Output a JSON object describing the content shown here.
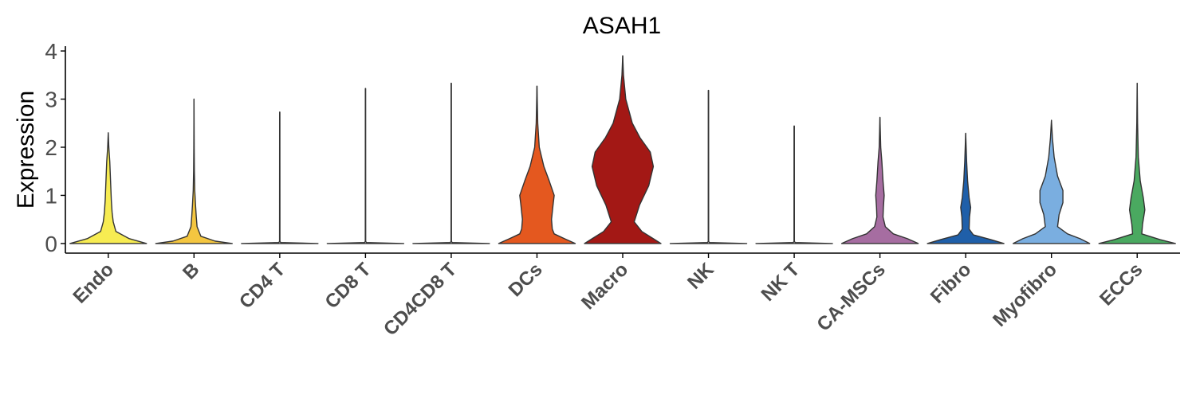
{
  "chart_data": {
    "type": "violin",
    "title": "ASAH1",
    "ylabel": "Expression",
    "xlabel": "",
    "ylim": [
      -0.2,
      4.1
    ],
    "yticks": [
      0,
      1,
      2,
      3,
      4
    ],
    "grid": false,
    "legend": "none",
    "categories": [
      "Endo",
      "B",
      "CD4 T",
      "CD8 T",
      "CD4CD8 T",
      "DCs",
      "Macro",
      "NK",
      "NK T",
      "CA-MSCs",
      "Fibro",
      "Myofibro",
      "ECCs"
    ],
    "colors": [
      "#f7ec52",
      "#f4c640",
      "#eeeeee",
      "#eeeeee",
      "#eeeeee",
      "#e4581f",
      "#a31815",
      "#eeeeee",
      "#eeeeee",
      "#a66da1",
      "#1f5fa9",
      "#7aaee0",
      "#4aa960"
    ],
    "max_values": [
      2.3,
      3.0,
      2.73,
      3.22,
      3.33,
      3.27,
      3.9,
      3.18,
      2.44,
      2.62,
      2.29,
      2.56,
      3.33
    ],
    "density_profiles": [
      [
        [
          0,
          1.0
        ],
        [
          0.1,
          0.55
        ],
        [
          0.25,
          0.2
        ],
        [
          0.45,
          0.13
        ],
        [
          0.65,
          0.1
        ],
        [
          0.9,
          0.08
        ],
        [
          1.3,
          0.06
        ],
        [
          1.7,
          0.04
        ],
        [
          2.0,
          0.015
        ],
        [
          2.3,
          0
        ]
      ],
      [
        [
          0,
          1.0
        ],
        [
          0.05,
          0.55
        ],
        [
          0.15,
          0.18
        ],
        [
          0.35,
          0.08
        ],
        [
          0.55,
          0.06
        ],
        [
          0.8,
          0.04
        ],
        [
          1.1,
          0.02
        ],
        [
          1.5,
          0.01
        ],
        [
          2.0,
          0.005
        ],
        [
          3.0,
          0
        ]
      ],
      [
        [
          0,
          1.0
        ],
        [
          0.02,
          0.03
        ],
        [
          0.04,
          0.005
        ],
        [
          2.73,
          0.003
        ]
      ],
      [
        [
          0,
          1.0
        ],
        [
          0.02,
          0.03
        ],
        [
          0.04,
          0.005
        ],
        [
          3.22,
          0.003
        ]
      ],
      [
        [
          0,
          1.0
        ],
        [
          0.02,
          0.03
        ],
        [
          0.04,
          0.005
        ],
        [
          3.33,
          0.003
        ]
      ],
      [
        [
          0,
          1.0
        ],
        [
          0.1,
          0.72
        ],
        [
          0.2,
          0.45
        ],
        [
          0.3,
          0.4
        ],
        [
          0.5,
          0.38
        ],
        [
          0.8,
          0.42
        ],
        [
          1.0,
          0.45
        ],
        [
          1.3,
          0.32
        ],
        [
          1.6,
          0.18
        ],
        [
          2.0,
          0.06
        ],
        [
          2.5,
          0.02
        ],
        [
          3.27,
          0
        ]
      ],
      [
        [
          0,
          1.0
        ],
        [
          0.1,
          0.8
        ],
        [
          0.25,
          0.5
        ],
        [
          0.45,
          0.3
        ],
        [
          0.8,
          0.44
        ],
        [
          1.2,
          0.68
        ],
        [
          1.6,
          0.8
        ],
        [
          1.9,
          0.72
        ],
        [
          2.2,
          0.45
        ],
        [
          2.5,
          0.25
        ],
        [
          3.0,
          0.08
        ],
        [
          3.5,
          0.02
        ],
        [
          3.9,
          0
        ]
      ],
      [
        [
          0,
          1.0
        ],
        [
          0.02,
          0.03
        ],
        [
          0.04,
          0.005
        ],
        [
          3.18,
          0.003
        ]
      ],
      [
        [
          0,
          1.0
        ],
        [
          0.02,
          0.03
        ],
        [
          0.04,
          0.005
        ],
        [
          2.44,
          0.003
        ]
      ],
      [
        [
          0,
          1.0
        ],
        [
          0.1,
          0.72
        ],
        [
          0.2,
          0.35
        ],
        [
          0.35,
          0.14
        ],
        [
          0.55,
          0.08
        ],
        [
          0.75,
          0.09
        ],
        [
          1.0,
          0.11
        ],
        [
          1.3,
          0.08
        ],
        [
          1.7,
          0.05
        ],
        [
          2.0,
          0.02
        ],
        [
          2.62,
          0
        ]
      ],
      [
        [
          0,
          1.0
        ],
        [
          0.08,
          0.66
        ],
        [
          0.18,
          0.2
        ],
        [
          0.3,
          0.09
        ],
        [
          0.55,
          0.1
        ],
        [
          0.75,
          0.13
        ],
        [
          0.95,
          0.09
        ],
        [
          1.3,
          0.05
        ],
        [
          1.7,
          0.025
        ],
        [
          2.29,
          0
        ]
      ],
      [
        [
          0,
          1.0
        ],
        [
          0.1,
          0.75
        ],
        [
          0.2,
          0.42
        ],
        [
          0.35,
          0.16
        ],
        [
          0.6,
          0.2
        ],
        [
          0.85,
          0.3
        ],
        [
          1.1,
          0.3
        ],
        [
          1.4,
          0.16
        ],
        [
          1.8,
          0.07
        ],
        [
          2.2,
          0.025
        ],
        [
          2.56,
          0
        ]
      ],
      [
        [
          0,
          1.0
        ],
        [
          0.08,
          0.6
        ],
        [
          0.2,
          0.12
        ],
        [
          0.4,
          0.14
        ],
        [
          0.7,
          0.2
        ],
        [
          0.95,
          0.16
        ],
        [
          1.3,
          0.08
        ],
        [
          1.8,
          0.03
        ],
        [
          2.5,
          0.01
        ],
        [
          3.33,
          0
        ]
      ]
    ]
  }
}
